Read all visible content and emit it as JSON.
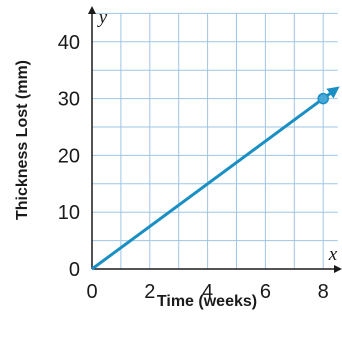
{
  "chart_data": {
    "type": "line",
    "xlabel": "Time (weeks)",
    "ylabel": "Thickness Lost (mm)",
    "x_axis_letter": "x",
    "y_axis_letter": "y",
    "xlim": [
      0,
      8.5
    ],
    "ylim": [
      0,
      45
    ],
    "x_ticks": [
      0,
      2,
      4,
      6,
      8
    ],
    "y_ticks": [
      0,
      10,
      20,
      30,
      40
    ],
    "grid": true,
    "grid_step_x": 1,
    "grid_step_y": 5,
    "line_color": "#1a8fc4",
    "grid_color": "#9ec5e6",
    "series": [
      {
        "x": [
          0,
          8
        ],
        "y": [
          0,
          30
        ]
      }
    ],
    "highlighted_point": {
      "x": 8,
      "y": 30
    }
  }
}
